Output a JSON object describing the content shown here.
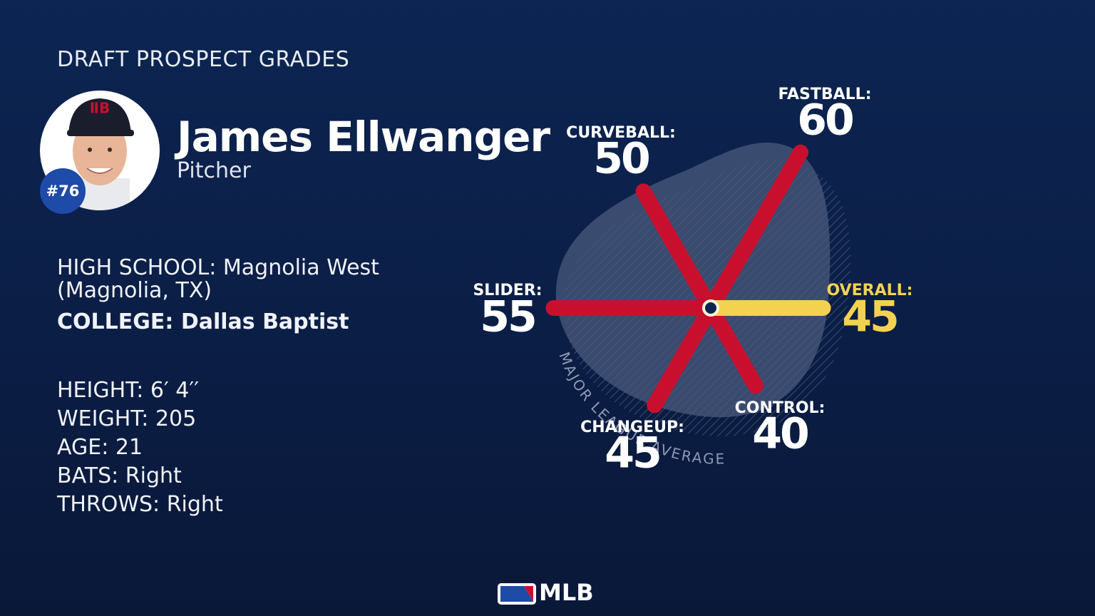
{
  "header": {
    "title": "DRAFT PROSPECT GRADES"
  },
  "player": {
    "name": "James Ellwanger",
    "position": "Pitcher",
    "number": "#76",
    "school": [
      {
        "label": "HIGH SCHOOL:",
        "value": "Magnolia West (Magnolia, TX)"
      },
      {
        "label": "COLLEGE:",
        "value": "Dallas Baptist"
      }
    ],
    "stats": [
      {
        "label": "HEIGHT:",
        "value": "6′ 4′′"
      },
      {
        "label": "WEIGHT:",
        "value": 205
      },
      {
        "label": "AGE:",
        "value": 21
      },
      {
        "label": "BATS:",
        "value": "Right"
      },
      {
        "label": "THROWS:",
        "value": "Right"
      }
    ]
  },
  "chart_data": {
    "type": "radar",
    "categories": [
      "OVERALL:",
      "FASTBALL:",
      "CURVEBALL:",
      "SLIDER:",
      "CHANGEUP:",
      "CONTROL:"
    ],
    "values": [
      45,
      60,
      50,
      55,
      45,
      40
    ],
    "colors": [
      "#f3d250",
      "#c8102e",
      "#c8102e",
      "#c8102e",
      "#c8102e",
      "#c8102e"
    ],
    "label_colors": [
      "#f3d250",
      "#ffffff",
      "#ffffff",
      "#ffffff",
      "#ffffff",
      "#ffffff"
    ],
    "rlim": [
      20,
      80
    ],
    "average_label": "MAJOR LEAGUE AVERAGE"
  },
  "footer": {
    "logo": "MLB"
  }
}
